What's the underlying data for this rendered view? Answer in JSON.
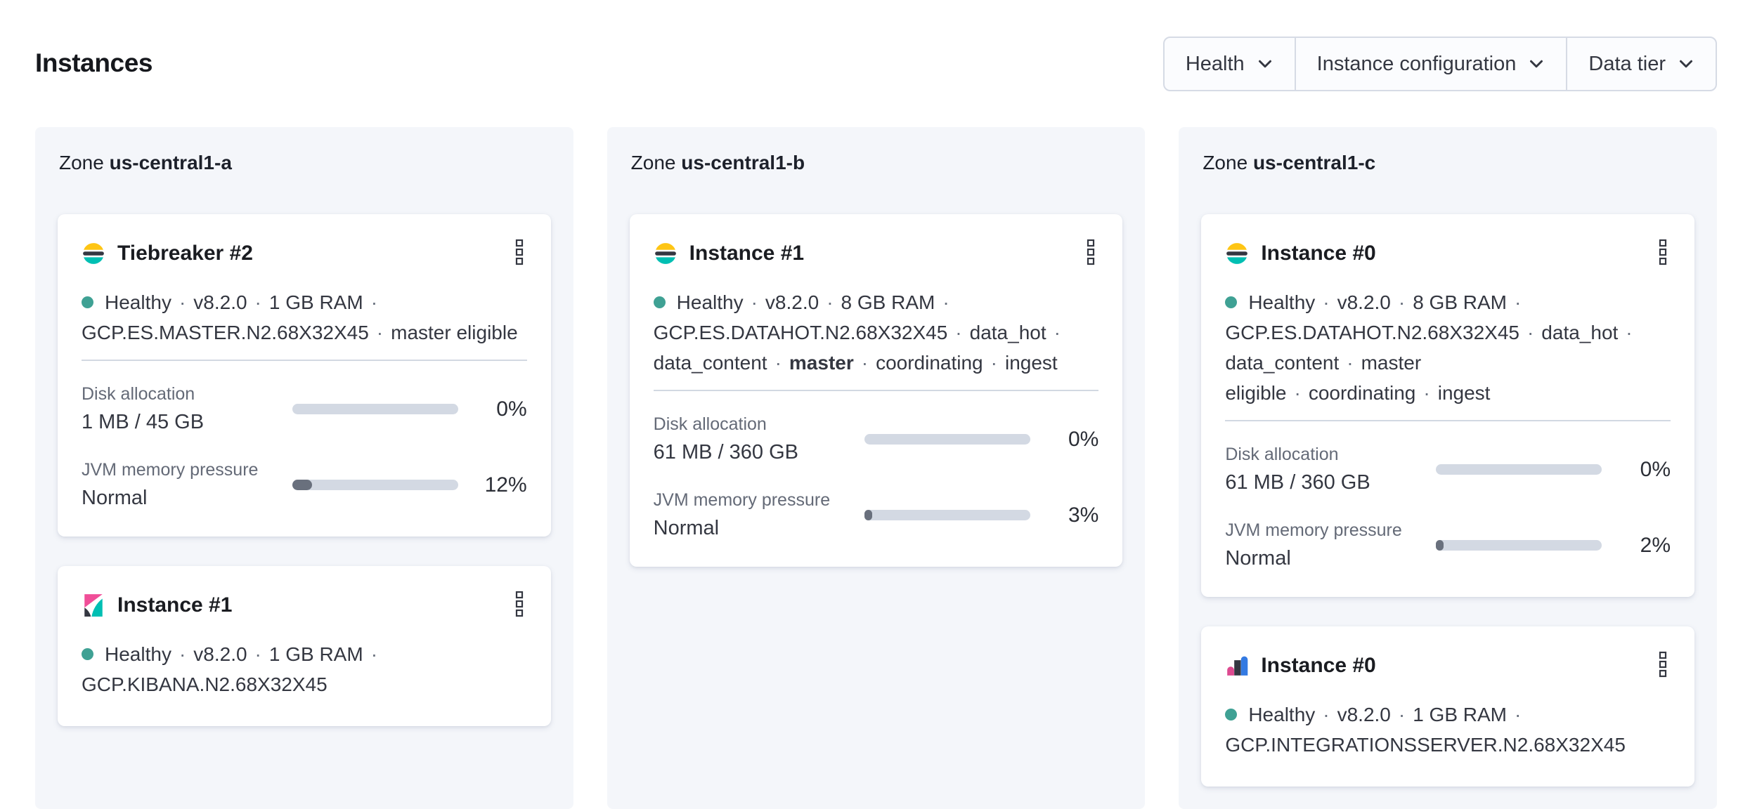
{
  "page": {
    "title": "Instances"
  },
  "filters": {
    "health": {
      "label": "Health",
      "icon": "chevron-down-icon"
    },
    "instance_configuration": {
      "label": "Instance configuration",
      "icon": "chevron-down-icon"
    },
    "data_tier": {
      "label": "Data tier",
      "icon": "chevron-down-icon"
    }
  },
  "colors": {
    "health_dot": "#3FA194",
    "bar_track": "#D3D9E3",
    "bar_fill": "#69707D",
    "panel_bg": "#F4F6FA",
    "elastic_yellow": "#FEC514",
    "elastic_teal": "#00BFB3",
    "elastic_dark": "#343741",
    "kibana_pink": "#F04E98",
    "integrations_blue": "#337AE2",
    "integrations_pink": "#DD4A90"
  },
  "zones": [
    {
      "label_prefix": "Zone",
      "name": "us-central1-a",
      "instances": [
        {
          "icon": "elasticsearch-logo",
          "menu_icon": "boxes-vertical-icon",
          "title": "Tiebreaker #2",
          "health": "Healthy",
          "desc_line1": [
            {
              "text": "Healthy"
            },
            {
              "sep": true
            },
            {
              "text": "v8.2.0"
            },
            {
              "sep": true
            },
            {
              "text": "1 GB RAM"
            },
            {
              "sep": true
            }
          ],
          "desc_line2": [
            {
              "text": "GCP.ES.MASTER.N2.68X32X45"
            },
            {
              "sep": true
            },
            {
              "text": "master eligible"
            }
          ],
          "metrics": [
            {
              "label": "Disk allocation",
              "value": "1 MB / 45 GB",
              "percent_label": "0%",
              "fill_percent": 0
            },
            {
              "label": "JVM memory pressure",
              "value": "Normal",
              "percent_label": "12%",
              "fill_percent": 12
            }
          ]
        },
        {
          "icon": "kibana-logo",
          "menu_icon": "boxes-vertical-icon",
          "title": "Instance #1",
          "health": "Healthy",
          "desc_line1": [
            {
              "text": "Healthy"
            },
            {
              "sep": true
            },
            {
              "text": "v8.2.0"
            },
            {
              "sep": true
            },
            {
              "text": "1 GB RAM"
            },
            {
              "sep": true
            }
          ],
          "desc_line2": [
            {
              "text": "GCP.KIBANA.N2.68X32X45"
            }
          ]
        }
      ]
    },
    {
      "label_prefix": "Zone",
      "name": "us-central1-b",
      "instances": [
        {
          "icon": "elasticsearch-logo",
          "menu_icon": "boxes-vertical-icon",
          "title": "Instance #1",
          "health": "Healthy",
          "desc_line1": [
            {
              "text": "Healthy"
            },
            {
              "sep": true
            },
            {
              "text": "v8.2.0"
            },
            {
              "sep": true
            },
            {
              "text": "8 GB RAM"
            },
            {
              "sep": true
            }
          ],
          "desc_line2": [
            {
              "text": "GCP.ES.DATAHOT.N2.68X32X45"
            },
            {
              "sep": true
            },
            {
              "text": "data_hot"
            },
            {
              "sep": true
            }
          ],
          "desc_line3": [
            {
              "text": "data_content"
            },
            {
              "sep": true
            },
            {
              "text": "master",
              "bold": true
            },
            {
              "sep": true
            },
            {
              "text": "coordinating"
            },
            {
              "sep": true
            },
            {
              "text": "ingest"
            }
          ],
          "metrics": [
            {
              "label": "Disk allocation",
              "value": "61 MB / 360 GB",
              "percent_label": "0%",
              "fill_percent": 0
            },
            {
              "label": "JVM memory pressure",
              "value": "Normal",
              "percent_label": "3%",
              "fill_percent": 3
            }
          ]
        }
      ]
    },
    {
      "label_prefix": "Zone",
      "name": "us-central1-c",
      "instances": [
        {
          "icon": "elasticsearch-logo",
          "menu_icon": "boxes-vertical-icon",
          "title": "Instance #0",
          "health": "Healthy",
          "desc_line1": [
            {
              "text": "Healthy"
            },
            {
              "sep": true
            },
            {
              "text": "v8.2.0"
            },
            {
              "sep": true
            },
            {
              "text": "8 GB RAM"
            },
            {
              "sep": true
            }
          ],
          "desc_line2": [
            {
              "text": "GCP.ES.DATAHOT.N2.68X32X45"
            },
            {
              "sep": true
            },
            {
              "text": "data_hot"
            },
            {
              "sep": true
            }
          ],
          "desc_line3": [
            {
              "text": "data_content"
            },
            {
              "sep": true
            },
            {
              "text": "master eligible"
            },
            {
              "sep": true
            },
            {
              "text": "coordinating"
            },
            {
              "sep": true
            },
            {
              "text": "ingest"
            }
          ],
          "metrics": [
            {
              "label": "Disk allocation",
              "value": "61 MB / 360 GB",
              "percent_label": "0%",
              "fill_percent": 0
            },
            {
              "label": "JVM memory pressure",
              "value": "Normal",
              "percent_label": "2%",
              "fill_percent": 2
            }
          ]
        },
        {
          "icon": "integrations-server-logo",
          "menu_icon": "boxes-vertical-icon",
          "title": "Instance #0",
          "health": "Healthy",
          "desc_line1": [
            {
              "text": "Healthy"
            },
            {
              "sep": true
            },
            {
              "text": "v8.2.0"
            },
            {
              "sep": true
            },
            {
              "text": "1 GB RAM"
            },
            {
              "sep": true
            }
          ],
          "desc_line2": [
            {
              "text": "GCP.INTEGRATIONSSERVER.N2.68X32X45"
            }
          ]
        }
      ]
    }
  ]
}
